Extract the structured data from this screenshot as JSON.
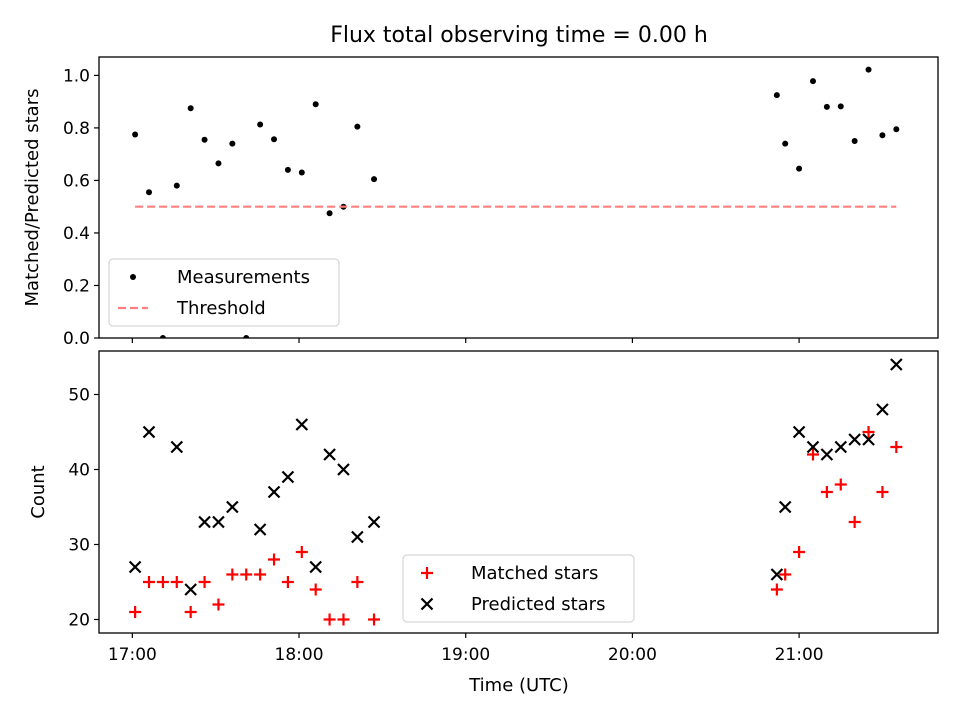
{
  "figure": {
    "title": "Flux total observing time = 0.00 h"
  },
  "chart_data": [
    {
      "type": "scatter",
      "ylabel": "Matched/Predicted stars",
      "xlim": [
        "16:48",
        "21:50"
      ],
      "ylim": [
        0,
        1.07
      ],
      "yticks": [
        0.0,
        0.2,
        0.4,
        0.6,
        0.8,
        1.0
      ],
      "ytick_labels": [
        "0.0",
        "0.2",
        "0.4",
        "0.6",
        "0.8",
        "1.0"
      ],
      "grid": false,
      "legend_position": "lower-left",
      "series": [
        {
          "name": "Measurements",
          "marker": "dot",
          "color": "#000000",
          "points": [
            [
              "17:01",
              0.775
            ],
            [
              "17:06",
              0.555
            ],
            [
              "17:11",
              0.0
            ],
            [
              "17:16",
              0.58
            ],
            [
              "17:21",
              0.875
            ],
            [
              "17:26",
              0.755
            ],
            [
              "17:31",
              0.665
            ],
            [
              "17:36",
              0.74
            ],
            [
              "17:41",
              0.0
            ],
            [
              "17:46",
              0.813
            ],
            [
              "17:51",
              0.757
            ],
            [
              "17:56",
              0.64
            ],
            [
              "18:01",
              0.63
            ],
            [
              "18:06",
              0.89
            ],
            [
              "18:11",
              0.475
            ],
            [
              "18:16",
              0.5
            ],
            [
              "18:21",
              0.805
            ],
            [
              "18:27",
              0.605
            ],
            [
              "20:52",
              0.925
            ],
            [
              "20:55",
              0.74
            ],
            [
              "21:00",
              0.645
            ],
            [
              "21:05",
              0.978
            ],
            [
              "21:10",
              0.88
            ],
            [
              "21:15",
              0.882
            ],
            [
              "21:20",
              0.75
            ],
            [
              "21:25",
              1.022
            ],
            [
              "21:30",
              0.772
            ],
            [
              "21:35",
              0.795
            ]
          ]
        },
        {
          "name": "Threshold",
          "style": "dashed-line",
          "color": "#ff7f7f",
          "points": [
            [
              "17:01",
              0.5
            ],
            [
              "21:35",
              0.5
            ]
          ]
        }
      ]
    },
    {
      "type": "scatter",
      "xlabel": "Time (UTC)",
      "ylabel": "Count",
      "xlim": [
        "16:48",
        "21:50"
      ],
      "ylim": [
        18.2,
        55.8
      ],
      "xticks": [
        "17:00",
        "18:00",
        "19:00",
        "20:00",
        "21:00"
      ],
      "yticks": [
        20,
        30,
        40,
        50
      ],
      "ytick_labels": [
        "20",
        "30",
        "40",
        "50"
      ],
      "grid": false,
      "legend_position": "lower-center",
      "series": [
        {
          "name": "Matched stars",
          "marker": "plus",
          "color": "#ff0000",
          "points": [
            [
              "17:01",
              21
            ],
            [
              "17:06",
              25
            ],
            [
              "17:11",
              25
            ],
            [
              "17:16",
              25
            ],
            [
              "17:21",
              21
            ],
            [
              "17:26",
              25
            ],
            [
              "17:31",
              22
            ],
            [
              "17:36",
              26
            ],
            [
              "17:41",
              26
            ],
            [
              "17:46",
              26
            ],
            [
              "17:51",
              28
            ],
            [
              "17:56",
              25
            ],
            [
              "18:01",
              29
            ],
            [
              "18:06",
              24
            ],
            [
              "18:11",
              20
            ],
            [
              "18:16",
              20
            ],
            [
              "18:21",
              25
            ],
            [
              "18:27",
              20
            ],
            [
              "20:52",
              24
            ],
            [
              "20:55",
              26
            ],
            [
              "21:00",
              29
            ],
            [
              "21:05",
              42
            ],
            [
              "21:10",
              37
            ],
            [
              "21:15",
              38
            ],
            [
              "21:20",
              33
            ],
            [
              "21:25",
              45
            ],
            [
              "21:30",
              37
            ],
            [
              "21:35",
              43
            ]
          ]
        },
        {
          "name": "Predicted stars",
          "marker": "x",
          "color": "#000000",
          "points": [
            [
              "17:01",
              27
            ],
            [
              "17:06",
              45
            ],
            [
              "17:16",
              43
            ],
            [
              "17:21",
              24
            ],
            [
              "17:26",
              33
            ],
            [
              "17:31",
              33
            ],
            [
              "17:36",
              35
            ],
            [
              "17:46",
              32
            ],
            [
              "17:51",
              37
            ],
            [
              "17:56",
              39
            ],
            [
              "18:01",
              46
            ],
            [
              "18:06",
              27
            ],
            [
              "18:11",
              42
            ],
            [
              "18:16",
              40
            ],
            [
              "18:21",
              31
            ],
            [
              "18:27",
              33
            ],
            [
              "20:52",
              26
            ],
            [
              "20:55",
              35
            ],
            [
              "21:00",
              45
            ],
            [
              "21:05",
              43
            ],
            [
              "21:10",
              42
            ],
            [
              "21:15",
              43
            ],
            [
              "21:20",
              44
            ],
            [
              "21:25",
              44
            ],
            [
              "21:30",
              48
            ],
            [
              "21:35",
              54
            ]
          ]
        }
      ]
    }
  ]
}
